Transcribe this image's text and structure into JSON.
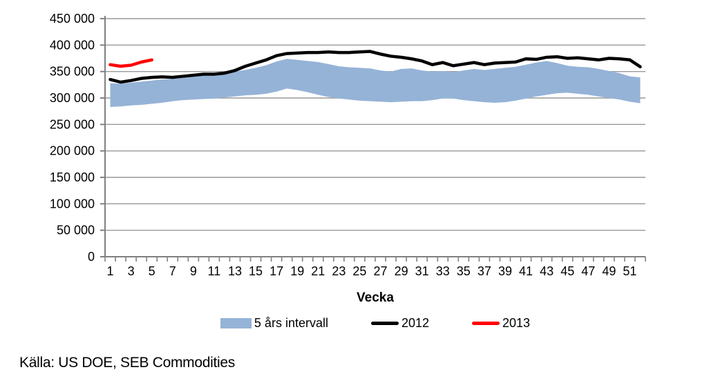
{
  "source_note": "Källa: US DOE, SEB Commodities",
  "colors": {
    "band": "#95B3D7",
    "line_2012": "#000000",
    "line_2013": "#FF0000",
    "axis": "#808080",
    "grid": "#999999",
    "text": "#000000"
  },
  "chart_data": {
    "type": "area",
    "title": "",
    "xlabel": "Vecka",
    "ylabel": "",
    "ylim": [
      0,
      450000
    ],
    "grid": "horizontal",
    "legend_position": "bottom",
    "y_ticks": [
      0,
      50000,
      100000,
      150000,
      200000,
      250000,
      300000,
      350000,
      400000,
      450000
    ],
    "y_tick_labels": [
      "0",
      "50 000",
      "100 000",
      "150 000",
      "200 000",
      "250 000",
      "300 000",
      "350 000",
      "400 000",
      "450 000"
    ],
    "x_tick_labels": [
      "1",
      "3",
      "5",
      "7",
      "9",
      "11",
      "13",
      "15",
      "17",
      "19",
      "21",
      "23",
      "25",
      "27",
      "29",
      "31",
      "33",
      "35",
      "37",
      "39",
      "41",
      "43",
      "45",
      "47",
      "49",
      "51"
    ],
    "categories": [
      1,
      2,
      3,
      4,
      5,
      6,
      7,
      8,
      9,
      10,
      11,
      12,
      13,
      14,
      15,
      16,
      17,
      18,
      19,
      20,
      21,
      22,
      23,
      24,
      25,
      26,
      27,
      28,
      29,
      30,
      31,
      32,
      33,
      34,
      35,
      36,
      37,
      38,
      39,
      40,
      41,
      42,
      43,
      44,
      45,
      46,
      47,
      48,
      49,
      50,
      51,
      52
    ],
    "series": [
      {
        "name": "5 års intervall",
        "type": "band",
        "color": "#95B3D7",
        "upper": [
          328000,
          327000,
          329000,
          331000,
          333000,
          335000,
          336000,
          338000,
          341000,
          344000,
          345000,
          347000,
          350000,
          353000,
          357000,
          362000,
          369000,
          374000,
          372000,
          370000,
          368000,
          364000,
          360000,
          358000,
          357000,
          356000,
          352000,
          350000,
          355000,
          356000,
          352000,
          350000,
          351000,
          349000,
          352000,
          355000,
          353000,
          355000,
          357000,
          359000,
          363000,
          367000,
          370000,
          366000,
          361000,
          359000,
          358000,
          355000,
          351000,
          347000,
          341000,
          339000
        ],
        "lower": [
          283000,
          284000,
          286000,
          287000,
          289000,
          291000,
          294000,
          296000,
          297000,
          298000,
          299000,
          301000,
          303000,
          305000,
          306000,
          308000,
          312000,
          318000,
          315000,
          311000,
          306000,
          302000,
          299000,
          297000,
          295000,
          294000,
          293000,
          292000,
          293000,
          294000,
          294000,
          296000,
          299000,
          299000,
          296000,
          294000,
          292000,
          291000,
          292000,
          295000,
          299000,
          303000,
          306000,
          309000,
          310000,
          308000,
          306000,
          303000,
          300000,
          297000,
          293000,
          290000
        ]
      },
      {
        "name": "2012",
        "type": "line",
        "color": "#000000",
        "values": [
          335000,
          330000,
          333000,
          337000,
          339000,
          340000,
          339000,
          341000,
          343000,
          345000,
          345000,
          347000,
          352000,
          360000,
          366000,
          372000,
          380000,
          384000,
          385000,
          386000,
          386000,
          387000,
          386000,
          386000,
          387000,
          388000,
          383000,
          379000,
          377000,
          374000,
          370000,
          363000,
          367000,
          361000,
          364000,
          367000,
          363000,
          366000,
          367000,
          368000,
          374000,
          373000,
          377000,
          378000,
          375000,
          376000,
          374000,
          372000,
          375000,
          374000,
          372000,
          359000
        ]
      },
      {
        "name": "2013",
        "type": "line",
        "color": "#FF0000",
        "values": [
          363000,
          360000,
          362000,
          368000,
          372000
        ]
      }
    ]
  }
}
